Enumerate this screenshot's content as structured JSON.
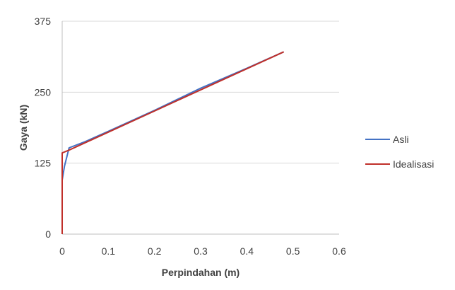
{
  "chart_data": {
    "type": "line",
    "xlabel": "Perpindahan (m)",
    "ylabel": "Gaya (kN)",
    "xlim": [
      0,
      0.6
    ],
    "ylim": [
      0,
      375
    ],
    "x_ticks": [
      "0",
      "0.1",
      "0.2",
      "0.3",
      "0.4",
      "0.5",
      "0.6"
    ],
    "x_tick_values": [
      0,
      0.1,
      0.2,
      0.3,
      0.4,
      0.5,
      0.6
    ],
    "y_ticks": [
      "0",
      "125",
      "250",
      "375"
    ],
    "y_tick_values": [
      0,
      125,
      250,
      375
    ],
    "grid": "horizontal",
    "legend_position": "right",
    "series": [
      {
        "name": "Asli",
        "color": "#4472c4",
        "x": [
          0,
          0,
          0.005,
          0.015,
          0.05,
          0.1,
          0.2,
          0.3,
          0.4,
          0.48
        ],
        "y": [
          0,
          95,
          120,
          152,
          163,
          181,
          218,
          257,
          292,
          321
        ]
      },
      {
        "name": "Idealisasi",
        "color": "#c0302a",
        "x": [
          0,
          0,
          0.015,
          0.48
        ],
        "y": [
          0,
          143,
          148,
          321
        ]
      }
    ]
  }
}
